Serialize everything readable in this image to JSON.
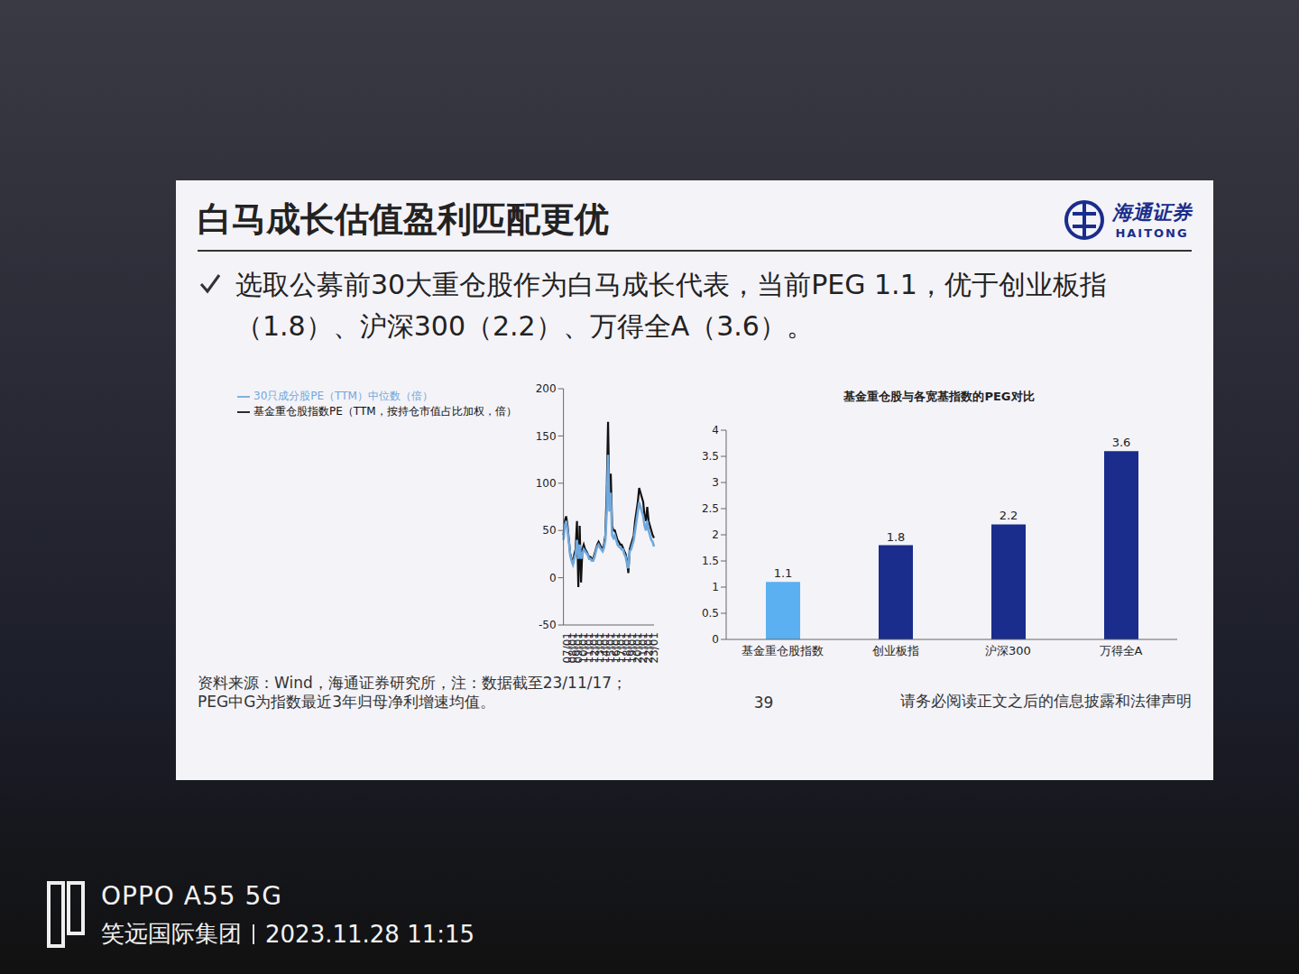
{
  "slide": {
    "title": "白马成长估值盈利匹配更优",
    "logo": {
      "name": "海通证券",
      "latin": "HAITONG"
    },
    "bullet": "选取公募前30大重仓股作为白马成长代表，当前PEG 1.1，优于创业板指（1.8）、沪深300（2.2）、万得全A（3.6）。",
    "footnote": [
      "资料来源：Wind，海通证券研究所，注：数据截至23/11/17；",
      "PEG中G为指数最近3年归母净利增速均值。"
    ],
    "page": "39",
    "disclaimer": "请务必阅读正文之后的信息披露和法律声明"
  },
  "watermark": {
    "device": "OPPO A55 5G",
    "owner": "笑远国际集团",
    "time": "2023.11.28 11:15"
  },
  "chart_data": [
    {
      "type": "line",
      "categories": [
        "07/01",
        null,
        null,
        null,
        "08/01",
        null,
        null,
        null,
        "09/01",
        null,
        null,
        null,
        "10/01",
        null,
        null,
        null,
        "11/01",
        null,
        null,
        null,
        "12/01",
        null,
        null,
        null,
        "13/01",
        null,
        null,
        null,
        "14/01",
        null,
        null,
        null,
        "15/01",
        null,
        null,
        null,
        "16/01",
        null,
        null,
        null,
        "17/01",
        null,
        null,
        null,
        "18/01",
        null,
        null,
        null,
        "19/01",
        null,
        null,
        null,
        "20/01",
        null,
        null,
        null,
        "21/01",
        null,
        null,
        null,
        "22/01",
        null,
        null,
        null,
        "23/01",
        null,
        null,
        null
      ],
      "series": [
        {
          "name": "基金重仓股指数PE（TTM，按持仓市值占比加权，倍）",
          "color": "#111111",
          "values": [
            45,
            60,
            65,
            55,
            40,
            25,
            20,
            15,
            25,
            30,
            60,
            -10,
            55,
            -5,
            30,
            35,
            30,
            28,
            25,
            22,
            22,
            20,
            20,
            25,
            30,
            35,
            38,
            35,
            32,
            30,
            35,
            45,
            90,
            165,
            80,
            110,
            55,
            50,
            50,
            45,
            40,
            38,
            35,
            35,
            32,
            28,
            25,
            18,
            5,
            30,
            35,
            40,
            45,
            60,
            70,
            80,
            95,
            90,
            85,
            80,
            65,
            60,
            75,
            60,
            55,
            50,
            45,
            42
          ]
        },
        {
          "name": "30只成分股PE（TTM）中位数（倍）",
          "color": "#6fa8dc",
          "values": [
            40,
            55,
            60,
            50,
            38,
            24,
            18,
            14,
            20,
            25,
            40,
            20,
            35,
            20,
            25,
            30,
            28,
            26,
            24,
            20,
            20,
            18,
            18,
            22,
            28,
            33,
            35,
            32,
            30,
            28,
            32,
            40,
            70,
            130,
            70,
            90,
            45,
            42,
            45,
            40,
            35,
            33,
            32,
            30,
            30,
            25,
            22,
            15,
            10,
            28,
            30,
            35,
            40,
            50,
            60,
            70,
            80,
            75,
            70,
            65,
            55,
            50,
            60,
            50,
            45,
            40,
            38,
            33
          ]
        }
      ],
      "ylim": [
        -50,
        200
      ],
      "yticks": [
        -50,
        0,
        50,
        100,
        150,
        200
      ],
      "grid": false,
      "legend": "top-left",
      "line_style": "solid",
      "marker": "none"
    },
    {
      "type": "bar",
      "title": "基金重仓股与各宽基指数的PEG对比",
      "categories": [
        "基金重仓股指数",
        "创业板指",
        "沪深300",
        "万得全A"
      ],
      "values": [
        1.1,
        1.8,
        2.2,
        3.6
      ],
      "colors": [
        "#5ab0f0",
        "#1a2d8c",
        "#1a2d8c",
        "#1a2d8c"
      ],
      "ylim": [
        0,
        4
      ],
      "yticks": [
        0,
        0.5,
        1,
        1.5,
        2,
        2.5,
        3,
        3.5,
        4
      ],
      "grid": false,
      "data_labels": true
    }
  ]
}
